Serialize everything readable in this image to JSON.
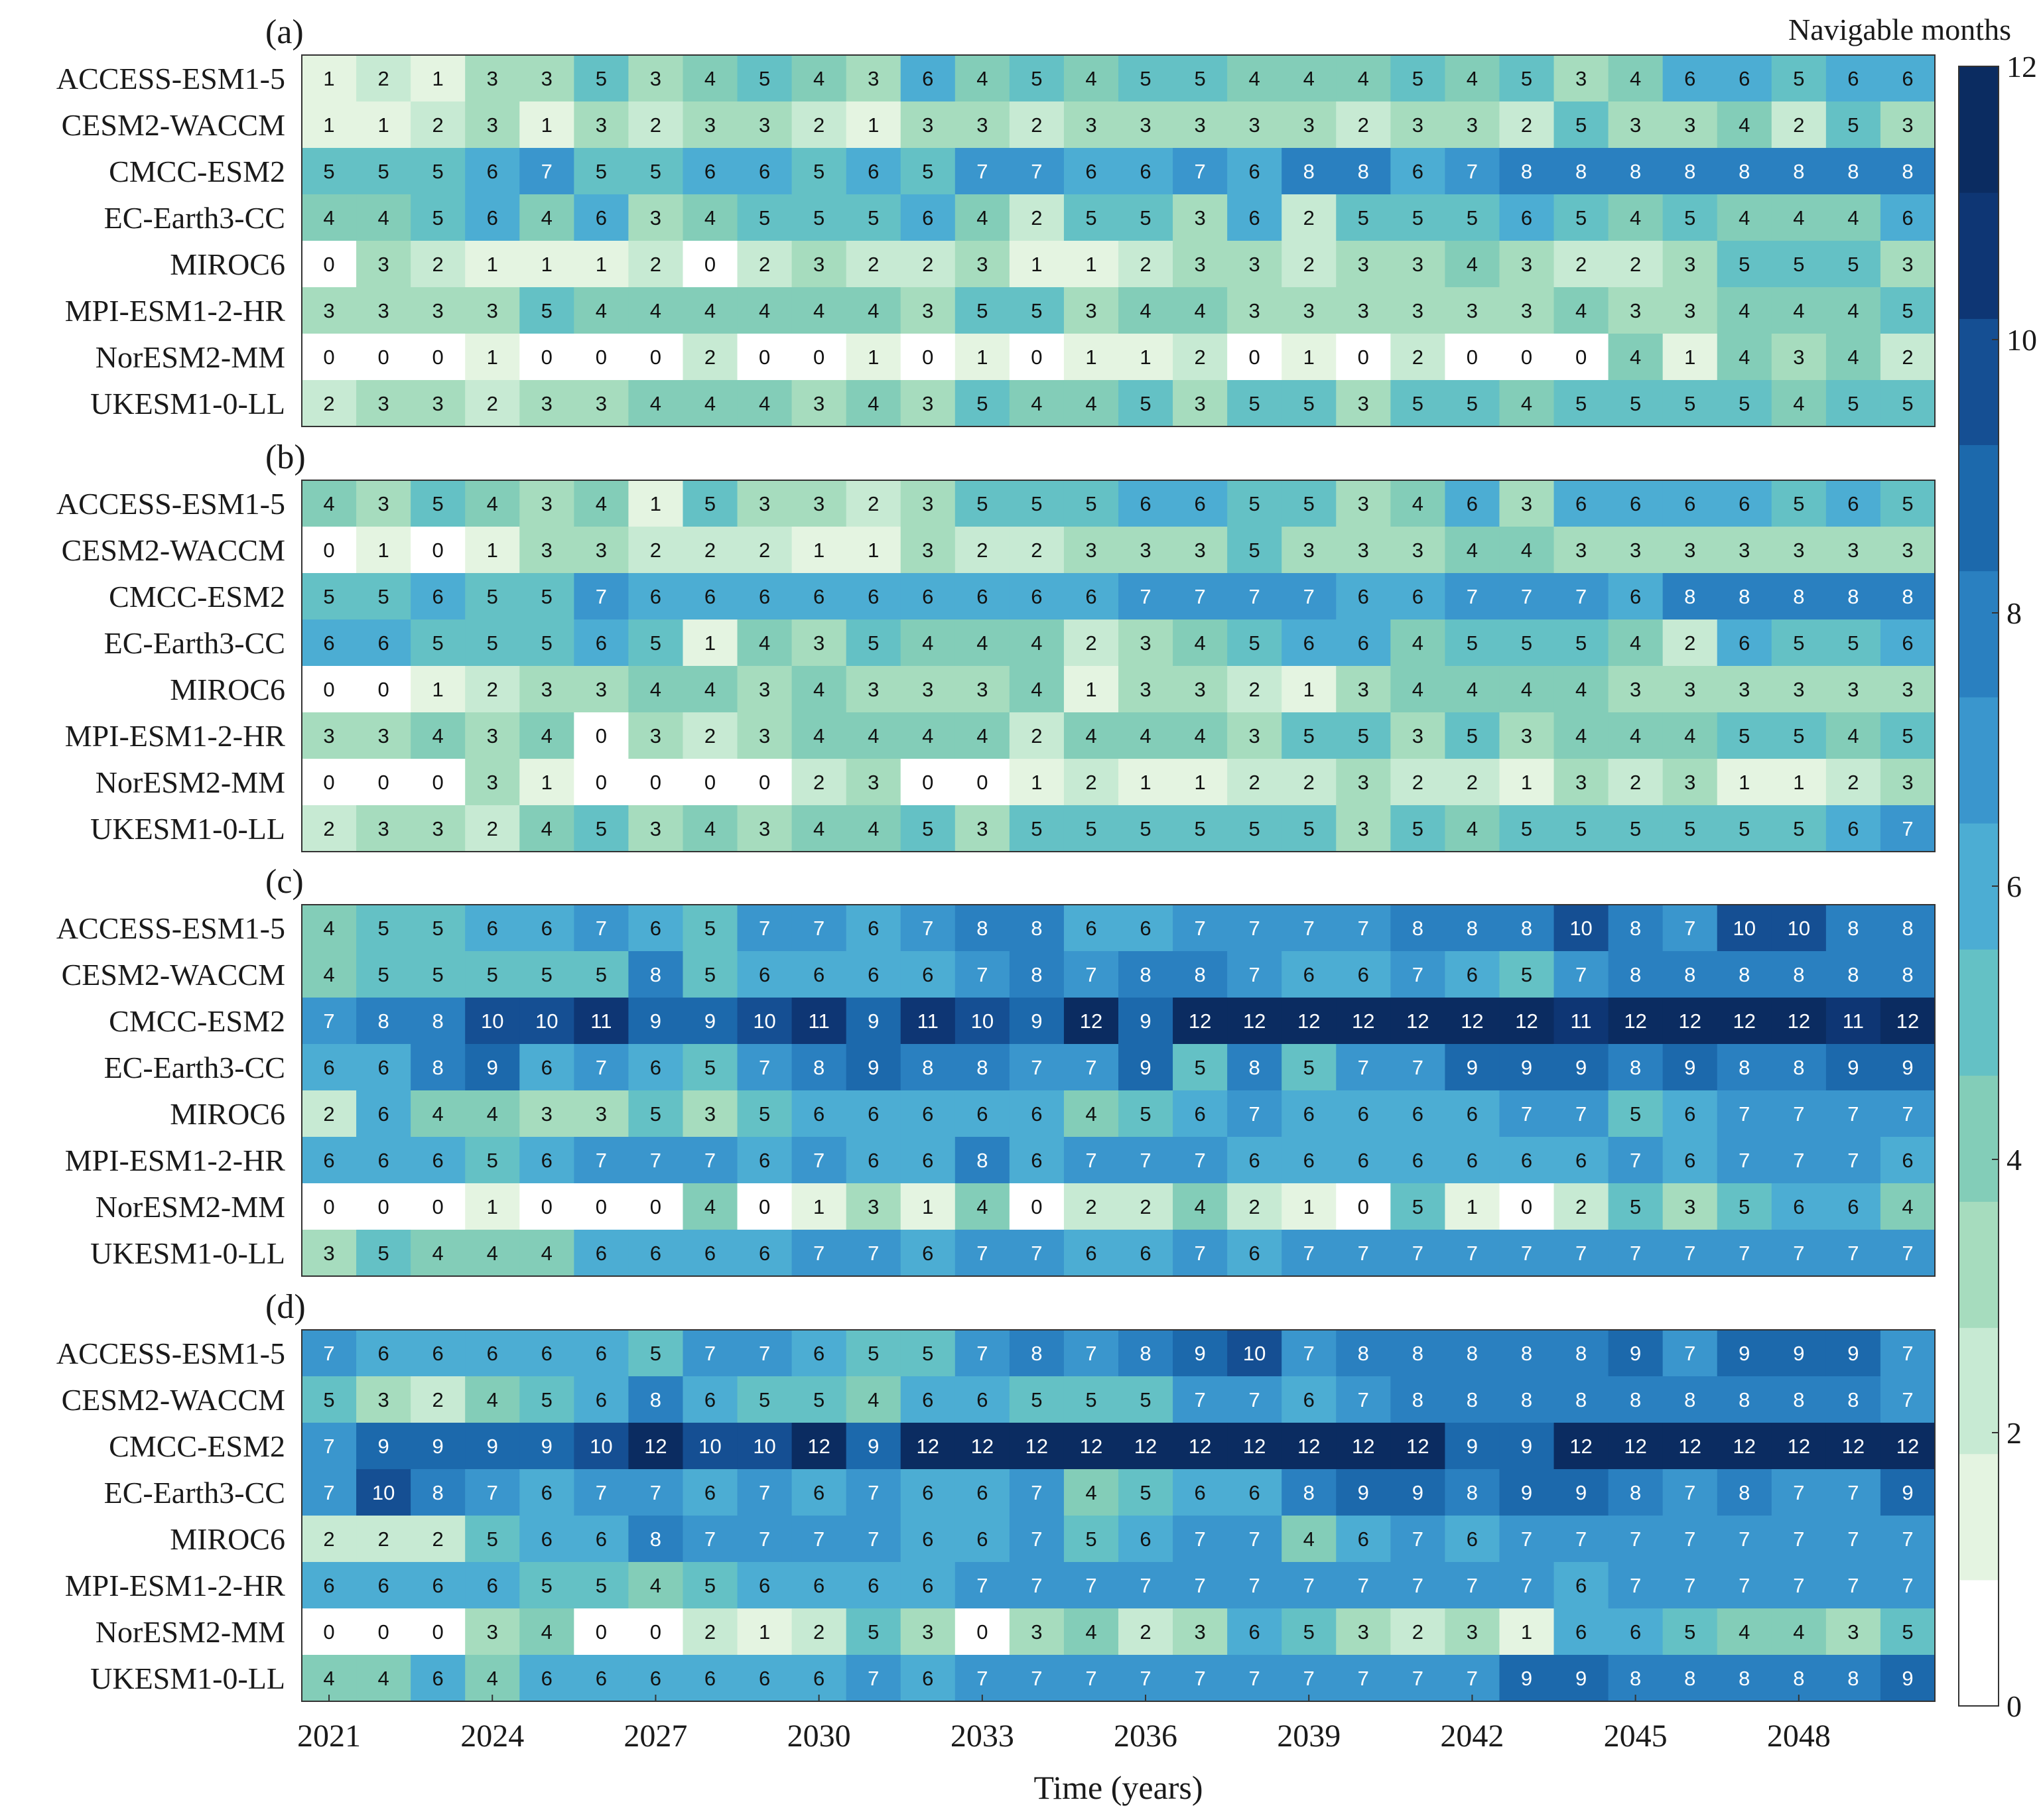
{
  "chart_data": {
    "type": "heatmap",
    "xlabel": "Time (years)",
    "colorbar_label": "Navigable months",
    "colorbar_range": [
      0,
      12
    ],
    "colorbar_ticks": [
      "0",
      "2",
      "4",
      "6",
      "8",
      "10",
      "12"
    ],
    "x_years": [
      2021,
      2022,
      2023,
      2024,
      2025,
      2026,
      2027,
      2028,
      2029,
      2030,
      2031,
      2032,
      2033,
      2034,
      2035,
      2036,
      2037,
      2038,
      2039,
      2040,
      2041,
      2042,
      2043,
      2044,
      2045,
      2046,
      2047,
      2048,
      2049,
      2050
    ],
    "x_tick_labels": [
      "2021",
      "2024",
      "2027",
      "2030",
      "2033",
      "2036",
      "2039",
      "2042",
      "2045",
      "2048"
    ],
    "models": [
      "ACCESS-ESM1-5",
      "CESM2-WACCM",
      "CMCC-ESM2",
      "EC-Earth3-CC",
      "MIROC6",
      "MPI-ESM1-2-HR",
      "NorESM2-MM",
      "UKESM1-0-LL"
    ],
    "colorscale": [
      "#ffffff",
      "#e4f4e1",
      "#c7ead3",
      "#a6dcbe",
      "#83cdb8",
      "#64c1c5",
      "#4cadd3",
      "#3a96cd",
      "#2a80c0",
      "#1c69ac",
      "#154f93",
      "#0e3674",
      "#0b2c61"
    ],
    "panels": [
      {
        "label": "(a)",
        "values": [
          [
            1,
            2,
            1,
            3,
            3,
            5,
            3,
            4,
            5,
            4,
            3,
            6,
            4,
            5,
            4,
            5,
            5,
            4,
            4,
            4,
            5,
            4,
            5,
            3,
            4,
            6,
            6,
            5,
            6,
            6
          ],
          [
            1,
            1,
            2,
            3,
            1,
            3,
            2,
            3,
            3,
            2,
            1,
            3,
            3,
            2,
            3,
            3,
            3,
            3,
            3,
            2,
            3,
            3,
            2,
            5,
            3,
            3,
            4,
            2,
            5,
            3
          ],
          [
            5,
            5,
            5,
            6,
            7,
            5,
            5,
            6,
            6,
            5,
            6,
            5,
            7,
            7,
            6,
            6,
            7,
            6,
            8,
            8,
            6,
            7,
            8,
            8,
            8,
            8,
            8,
            8,
            8,
            8
          ],
          [
            4,
            4,
            5,
            6,
            4,
            6,
            3,
            4,
            5,
            5,
            5,
            6,
            4,
            2,
            5,
            5,
            3,
            6,
            2,
            5,
            5,
            5,
            6,
            5,
            4,
            5,
            4,
            4,
            4,
            6
          ],
          [
            0,
            3,
            2,
            1,
            1,
            1,
            2,
            0,
            2,
            3,
            2,
            2,
            3,
            1,
            1,
            2,
            3,
            3,
            2,
            3,
            3,
            4,
            3,
            2,
            2,
            3,
            5,
            5,
            5,
            3
          ],
          [
            3,
            3,
            3,
            3,
            5,
            4,
            4,
            4,
            4,
            4,
            4,
            3,
            5,
            5,
            3,
            4,
            4,
            3,
            3,
            3,
            3,
            3,
            3,
            4,
            3,
            3,
            4,
            4,
            4,
            5
          ],
          [
            0,
            0,
            0,
            1,
            0,
            0,
            0,
            2,
            0,
            0,
            1,
            0,
            1,
            0,
            1,
            1,
            2,
            0,
            1,
            0,
            2,
            0,
            0,
            0,
            4,
            1,
            4,
            3,
            4,
            2
          ],
          [
            2,
            3,
            3,
            2,
            3,
            3,
            4,
            4,
            4,
            3,
            4,
            3,
            5,
            4,
            4,
            5,
            3,
            5,
            5,
            3,
            5,
            5,
            4,
            5,
            5,
            5,
            5,
            4,
            5,
            5
          ]
        ]
      },
      {
        "label": "(b)",
        "values": [
          [
            4,
            3,
            5,
            4,
            3,
            4,
            1,
            5,
            3,
            3,
            2,
            3,
            5,
            5,
            5,
            6,
            6,
            5,
            5,
            3,
            4,
            6,
            3,
            6,
            6,
            6,
            6,
            5,
            6,
            5
          ],
          [
            0,
            1,
            0,
            1,
            3,
            3,
            2,
            2,
            2,
            1,
            1,
            3,
            2,
            2,
            3,
            3,
            3,
            5,
            3,
            3,
            3,
            4,
            4,
            3,
            3,
            3,
            3,
            3,
            3,
            3
          ],
          [
            5,
            5,
            6,
            5,
            5,
            7,
            6,
            6,
            6,
            6,
            6,
            6,
            6,
            6,
            6,
            7,
            7,
            7,
            7,
            6,
            6,
            7,
            7,
            7,
            6,
            8,
            8,
            8,
            8,
            8
          ],
          [
            6,
            6,
            5,
            5,
            5,
            6,
            5,
            1,
            4,
            3,
            5,
            4,
            4,
            4,
            2,
            3,
            4,
            5,
            6,
            6,
            4,
            5,
            5,
            5,
            4,
            2,
            6,
            5,
            5,
            6
          ],
          [
            0,
            0,
            1,
            2,
            3,
            3,
            4,
            4,
            3,
            4,
            3,
            3,
            3,
            4,
            1,
            3,
            3,
            2,
            1,
            3,
            4,
            4,
            4,
            4,
            3,
            3,
            3,
            3,
            3,
            3
          ],
          [
            3,
            3,
            4,
            3,
            4,
            0,
            3,
            2,
            3,
            4,
            4,
            4,
            4,
            2,
            4,
            4,
            4,
            3,
            5,
            5,
            3,
            5,
            3,
            4,
            4,
            4,
            5,
            5,
            4,
            5
          ],
          [
            0,
            0,
            0,
            3,
            1,
            0,
            0,
            0,
            0,
            2,
            3,
            0,
            0,
            1,
            2,
            1,
            1,
            2,
            2,
            3,
            2,
            2,
            1,
            3,
            2,
            3,
            1,
            1,
            2,
            3
          ],
          [
            2,
            3,
            3,
            2,
            4,
            5,
            3,
            4,
            3,
            4,
            4,
            5,
            3,
            5,
            5,
            5,
            5,
            5,
            5,
            3,
            5,
            4,
            5,
            5,
            5,
            5,
            5,
            5,
            6,
            7
          ]
        ]
      },
      {
        "label": "(c)",
        "values": [
          [
            4,
            5,
            5,
            6,
            6,
            7,
            6,
            5,
            7,
            7,
            6,
            7,
            8,
            8,
            6,
            6,
            7,
            7,
            7,
            7,
            8,
            8,
            8,
            10,
            8,
            7,
            10,
            10,
            8,
            8
          ],
          [
            4,
            5,
            5,
            5,
            5,
            5,
            8,
            5,
            6,
            6,
            6,
            6,
            7,
            8,
            7,
            8,
            8,
            7,
            6,
            6,
            7,
            6,
            5,
            7,
            8,
            8,
            8,
            8,
            8,
            8
          ],
          [
            7,
            8,
            8,
            10,
            10,
            11,
            9,
            9,
            10,
            11,
            9,
            11,
            10,
            9,
            12,
            9,
            12,
            12,
            12,
            12,
            12,
            12,
            12,
            11,
            12,
            12,
            12,
            12,
            11,
            12
          ],
          [
            6,
            6,
            8,
            9,
            6,
            7,
            6,
            5,
            7,
            8,
            9,
            8,
            8,
            7,
            7,
            9,
            5,
            8,
            5,
            7,
            7,
            9,
            9,
            9,
            8,
            9,
            8,
            8,
            9,
            9
          ],
          [
            2,
            6,
            4,
            4,
            3,
            3,
            5,
            3,
            5,
            6,
            6,
            6,
            6,
            6,
            4,
            5,
            6,
            7,
            6,
            6,
            6,
            6,
            7,
            7,
            5,
            6,
            7,
            7,
            7,
            7
          ],
          [
            6,
            6,
            6,
            5,
            6,
            7,
            7,
            7,
            6,
            7,
            6,
            6,
            8,
            6,
            7,
            7,
            7,
            6,
            6,
            6,
            6,
            6,
            6,
            6,
            7,
            6,
            7,
            7,
            7,
            6
          ],
          [
            0,
            0,
            0,
            1,
            0,
            0,
            0,
            4,
            0,
            1,
            3,
            1,
            4,
            0,
            2,
            2,
            4,
            2,
            1,
            0,
            5,
            1,
            0,
            2,
            5,
            3,
            5,
            6,
            6,
            4
          ],
          [
            3,
            5,
            4,
            4,
            4,
            6,
            6,
            6,
            6,
            7,
            7,
            6,
            7,
            7,
            6,
            6,
            7,
            6,
            7,
            7,
            7,
            7,
            7,
            7,
            7,
            7,
            7,
            7,
            7,
            7
          ]
        ]
      },
      {
        "label": "(d)",
        "values": [
          [
            7,
            6,
            6,
            6,
            6,
            6,
            5,
            7,
            7,
            6,
            5,
            5,
            7,
            8,
            7,
            8,
            9,
            10,
            7,
            8,
            8,
            8,
            8,
            8,
            9,
            7,
            9,
            9,
            9,
            7
          ],
          [
            5,
            3,
            2,
            4,
            5,
            6,
            8,
            6,
            5,
            5,
            4,
            6,
            6,
            5,
            5,
            5,
            7,
            7,
            6,
            7,
            8,
            8,
            8,
            8,
            8,
            8,
            8,
            8,
            8,
            7
          ],
          [
            7,
            9,
            9,
            9,
            9,
            10,
            12,
            10,
            10,
            12,
            9,
            12,
            12,
            12,
            12,
            12,
            12,
            12,
            12,
            12,
            12,
            9,
            9,
            12,
            12,
            12,
            12,
            12,
            12,
            12
          ],
          [
            7,
            10,
            8,
            7,
            6,
            7,
            7,
            6,
            7,
            6,
            7,
            6,
            6,
            7,
            4,
            5,
            6,
            6,
            8,
            9,
            9,
            8,
            9,
            9,
            8,
            7,
            8,
            7,
            7,
            9
          ],
          [
            2,
            2,
            2,
            5,
            6,
            6,
            8,
            7,
            7,
            7,
            7,
            6,
            6,
            7,
            5,
            6,
            7,
            7,
            4,
            6,
            7,
            6,
            7,
            7,
            7,
            7,
            7,
            7,
            7,
            7
          ],
          [
            6,
            6,
            6,
            6,
            5,
            5,
            4,
            5,
            6,
            6,
            6,
            6,
            7,
            7,
            7,
            7,
            7,
            7,
            7,
            7,
            7,
            7,
            7,
            6,
            7,
            7,
            7,
            7,
            7,
            7
          ],
          [
            0,
            0,
            0,
            3,
            4,
            0,
            0,
            2,
            1,
            2,
            5,
            3,
            0,
            3,
            4,
            2,
            3,
            6,
            5,
            3,
            2,
            3,
            1,
            6,
            6,
            5,
            4,
            4,
            3,
            5
          ],
          [
            4,
            4,
            6,
            4,
            6,
            6,
            6,
            6,
            6,
            6,
            7,
            6,
            7,
            7,
            7,
            7,
            7,
            7,
            7,
            7,
            7,
            7,
            9,
            9,
            8,
            8,
            8,
            8,
            8,
            9
          ]
        ]
      }
    ]
  }
}
